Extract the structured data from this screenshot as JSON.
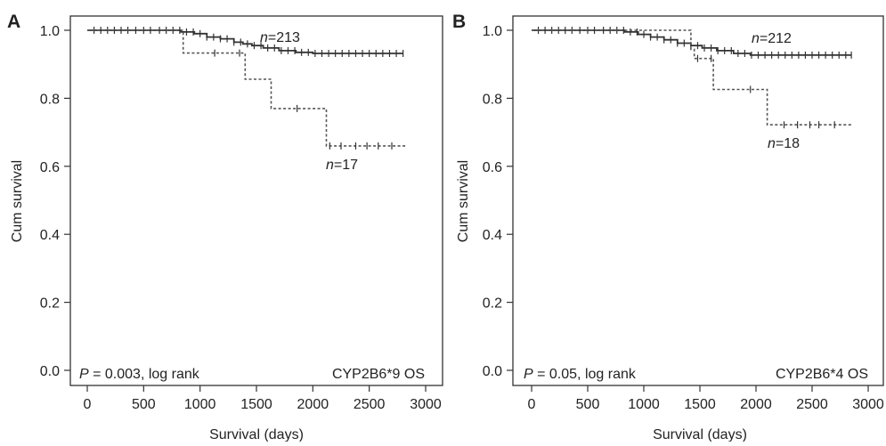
{
  "chart_data": [
    {
      "type": "line",
      "panel_label": "A",
      "xlabel": "Survival (days)",
      "ylabel": "Cum survival",
      "xlim": [
        0,
        3000
      ],
      "ylim": [
        0.0,
        1.0
      ],
      "xticks": [
        "0",
        "500",
        "1000",
        "1500",
        "2000",
        "2500",
        "3000"
      ],
      "yticks": [
        "0.0",
        "0.2",
        "0.4",
        "0.6",
        "0.8",
        "1.0"
      ],
      "grid": false,
      "pvalue_prefix": "P",
      "pvalue_text": " = 0.003, log rank",
      "annotation": "CYP2B6*9 OS",
      "series": [
        {
          "n_prefix": "n",
          "n_label": "=213",
          "style": "solid",
          "steps": [
            [
              0,
              1.0
            ],
            [
              830,
              0.995
            ],
            [
              950,
              0.99
            ],
            [
              1060,
              0.98
            ],
            [
              1180,
              0.975
            ],
            [
              1300,
              0.965
            ],
            [
              1380,
              0.96
            ],
            [
              1460,
              0.955
            ],
            [
              1560,
              0.948
            ],
            [
              1700,
              0.94
            ],
            [
              1850,
              0.935
            ],
            [
              2000,
              0.932
            ],
            [
              2800,
              0.932
            ]
          ],
          "censor": [
            60,
            120,
            180,
            240,
            300,
            360,
            430,
            500,
            560,
            640,
            700,
            760,
            820,
            880,
            940,
            1000,
            1060,
            1120,
            1180,
            1240,
            1300,
            1360,
            1420,
            1480,
            1540,
            1600,
            1660,
            1720,
            1780,
            1840,
            1900,
            1960,
            2020,
            2080,
            2140,
            2200,
            2260,
            2320,
            2380,
            2440,
            2500,
            2560,
            2620,
            2680,
            2740,
            2800
          ]
        },
        {
          "n_prefix": "n",
          "n_label": "=17",
          "style": "dashed",
          "steps": [
            [
              0,
              1.0
            ],
            [
              850,
              0.933
            ],
            [
              1400,
              0.856
            ],
            [
              1630,
              0.77
            ],
            [
              2120,
              0.66
            ],
            [
              2830,
              0.66
            ]
          ],
          "censor": [
            1130,
            1350,
            1860,
            2150,
            2250,
            2380,
            2480,
            2580,
            2700
          ]
        }
      ]
    },
    {
      "type": "line",
      "panel_label": "B",
      "xlabel": "Survival (days)",
      "ylabel": "Cum survival",
      "xlim": [
        0,
        3000
      ],
      "ylim": [
        0.0,
        1.0
      ],
      "xticks": [
        "0",
        "500",
        "1000",
        "1500",
        "2000",
        "2500",
        "3000"
      ],
      "yticks": [
        "0.0",
        "0.2",
        "0.4",
        "0.6",
        "0.8",
        "1.0"
      ],
      "grid": false,
      "pvalue_prefix": "P",
      "pvalue_text": " = 0.05, log rank",
      "annotation": "CYP2B6*4 OS",
      "series": [
        {
          "n_prefix": "n",
          "n_label": "=212",
          "style": "solid",
          "steps": [
            [
              0,
              1.0
            ],
            [
              830,
              0.995
            ],
            [
              950,
              0.988
            ],
            [
              1060,
              0.98
            ],
            [
              1180,
              0.972
            ],
            [
              1300,
              0.962
            ],
            [
              1420,
              0.955
            ],
            [
              1520,
              0.948
            ],
            [
              1650,
              0.94
            ],
            [
              1800,
              0.932
            ],
            [
              1950,
              0.927
            ],
            [
              2850,
              0.927
            ]
          ],
          "censor": [
            60,
            120,
            180,
            240,
            300,
            360,
            430,
            500,
            560,
            640,
            700,
            760,
            820,
            880,
            940,
            1000,
            1060,
            1120,
            1180,
            1240,
            1300,
            1360,
            1420,
            1480,
            1540,
            1600,
            1660,
            1720,
            1780,
            1840,
            1900,
            1960,
            2020,
            2080,
            2140,
            2200,
            2260,
            2320,
            2380,
            2440,
            2500,
            2560,
            2620,
            2680,
            2740,
            2800,
            2850
          ]
        },
        {
          "n_prefix": "n",
          "n_label": "=18",
          "style": "dashed",
          "steps": [
            [
              0,
              1.0
            ],
            [
              1420,
              0.944
            ],
            [
              1450,
              0.917
            ],
            [
              1620,
              0.826
            ],
            [
              2100,
              0.722
            ],
            [
              2850,
              0.722
            ]
          ],
          "censor": [
            1480,
            1600,
            1950,
            2250,
            2370,
            2480,
            2560,
            2700
          ]
        }
      ]
    }
  ]
}
